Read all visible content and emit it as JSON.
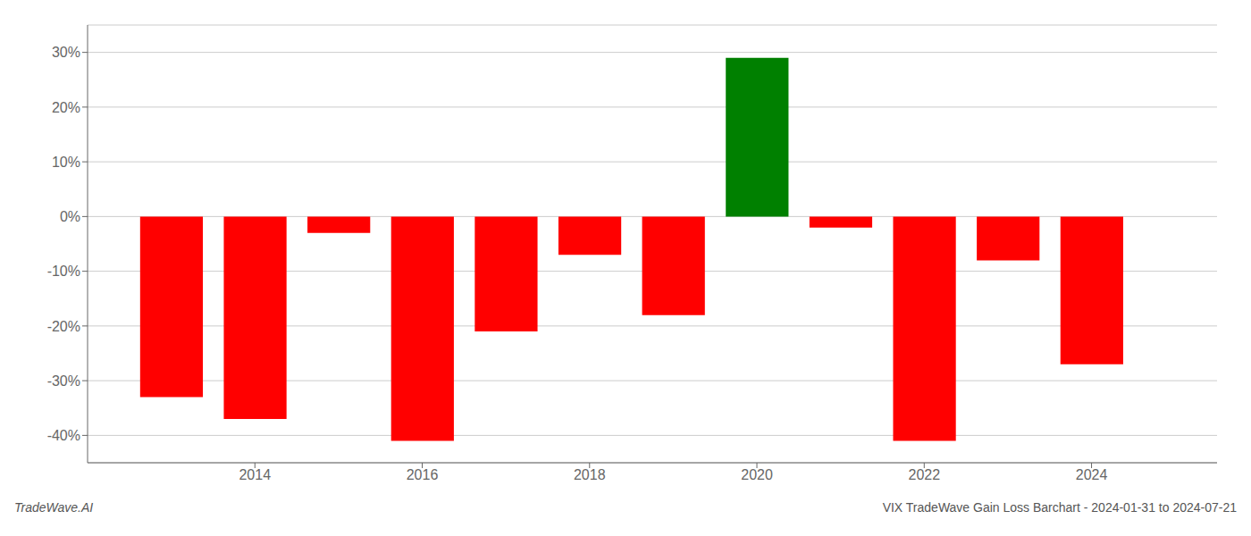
{
  "chart_data": {
    "type": "bar",
    "title": "VIX TradeWave Gain Loss Barchart - 2024-01-31 to 2024-07-21",
    "annotations": [
      "TradeWave.AI"
    ],
    "x": [
      2013,
      2014,
      2015,
      2016,
      2017,
      2018,
      2019,
      2020,
      2021,
      2022,
      2023,
      2024
    ],
    "values": [
      -33,
      -37,
      -3,
      -41,
      -21,
      -7,
      -18,
      29,
      -2,
      -41,
      -8,
      -27
    ],
    "colors": [
      "#ff0000",
      "#ff0000",
      "#ff0000",
      "#ff0000",
      "#ff0000",
      "#ff0000",
      "#ff0000",
      "#008000",
      "#ff0000",
      "#ff0000",
      "#ff0000",
      "#ff0000"
    ],
    "xlim": [
      2012.0,
      2025.5
    ],
    "xticks": [
      2014,
      2016,
      2018,
      2020,
      2022,
      2024
    ],
    "ylim": [
      -45,
      35
    ],
    "yticks": [
      {
        "value": -40,
        "label": "-40%"
      },
      {
        "value": -30,
        "label": "-30%"
      },
      {
        "value": -20,
        "label": "-20%"
      },
      {
        "value": -10,
        "label": "-10%"
      },
      {
        "value": 0,
        "label": "0%"
      },
      {
        "value": 10,
        "label": "10%"
      },
      {
        "value": 20,
        "label": "20%"
      },
      {
        "value": 30,
        "label": "30%"
      }
    ],
    "grid": true
  }
}
